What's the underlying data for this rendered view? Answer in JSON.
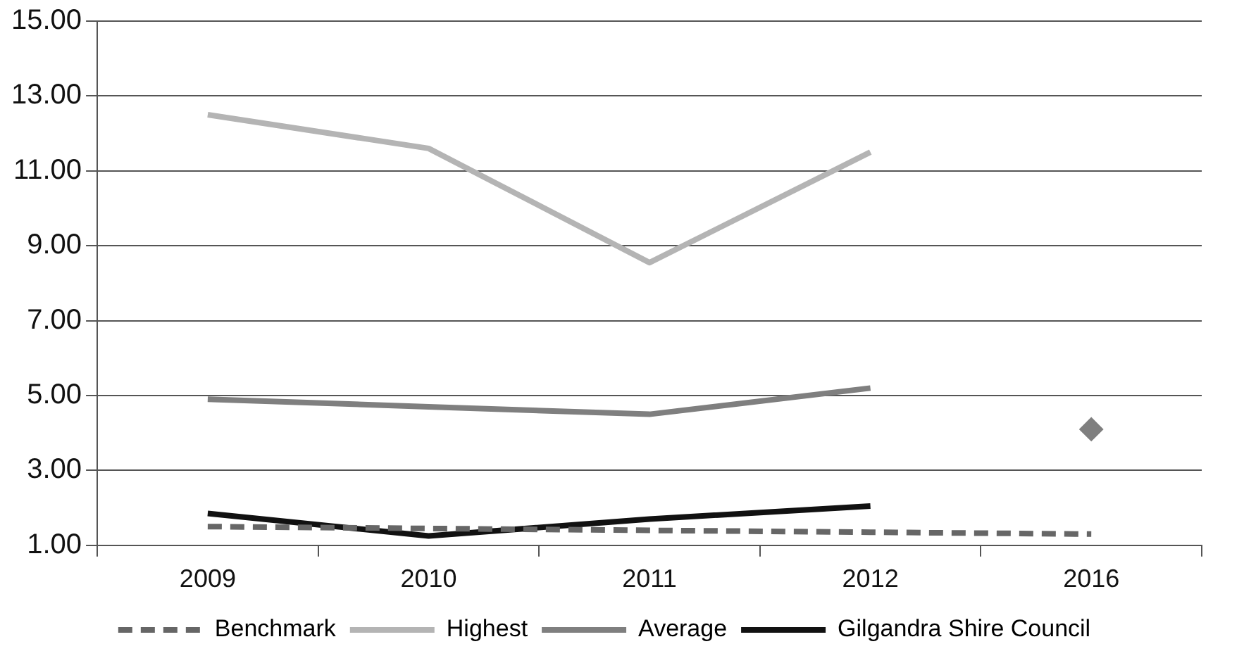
{
  "chart_data": {
    "type": "line",
    "categories": [
      "2009",
      "2010",
      "2011",
      "2012",
      "2016"
    ],
    "series": [
      {
        "name": "Benchmark",
        "color": "#666666",
        "line_style": "dashed",
        "values": [
          1.5,
          1.45,
          1.4,
          1.35,
          1.3
        ]
      },
      {
        "name": "Highest",
        "color": "#b4b4b4",
        "values": [
          12.5,
          11.6,
          8.55,
          11.5,
          null
        ]
      },
      {
        "name": "Average",
        "color": "#7f7f7f",
        "values": [
          4.9,
          4.7,
          4.5,
          5.2,
          null
        ]
      },
      {
        "name": "Gilgandra Shire Council",
        "color": "#111111",
        "values": [
          1.85,
          1.25,
          1.7,
          2.05,
          null
        ]
      },
      {
        "type": "scatter",
        "marker": "diamond",
        "color": "#7f7f7f",
        "values": [
          null,
          null,
          null,
          null,
          4.1
        ]
      }
    ],
    "ylim": [
      1,
      15
    ],
    "yticks": [
      {
        "value": 1,
        "label": "1.00"
      },
      {
        "value": 3,
        "label": "3.00"
      },
      {
        "value": 5,
        "label": "5.00"
      },
      {
        "value": 7,
        "label": "7.00"
      },
      {
        "value": 9,
        "label": "9.00"
      },
      {
        "value": 11,
        "label": "11.00"
      },
      {
        "value": 13,
        "label": "13.00"
      },
      {
        "value": 15,
        "label": "15.00"
      }
    ],
    "grid": "y",
    "legend": "bottom",
    "marker": "none",
    "line_style": "solid"
  }
}
